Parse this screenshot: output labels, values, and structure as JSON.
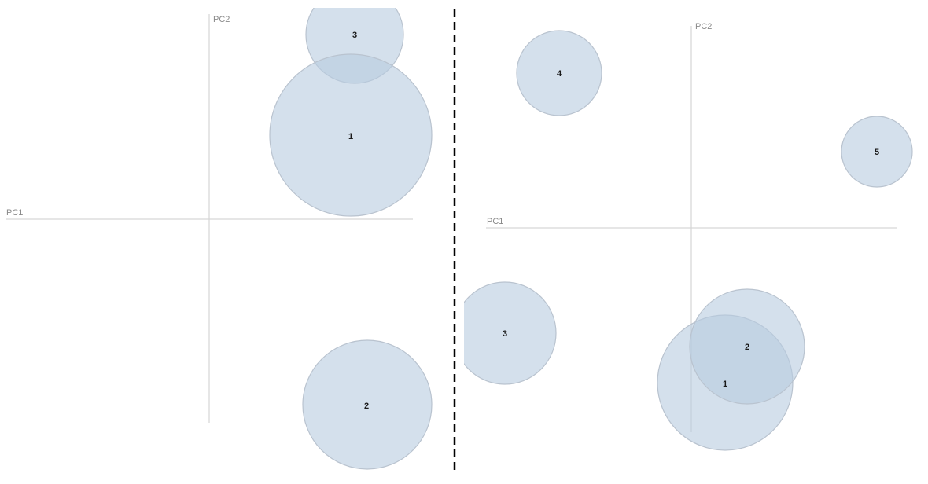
{
  "style": {
    "bubble_fill": "#b7cbe0",
    "bubble_opacity": 0.6,
    "divider_color": "#000000"
  },
  "panels": [
    {
      "x_axis_label": "PC1",
      "y_axis_label": "PC2",
      "bubbles": [
        {
          "label": "3"
        },
        {
          "label": "1"
        },
        {
          "label": "2"
        }
      ]
    },
    {
      "x_axis_label": "PC1",
      "y_axis_label": "PC2",
      "bubbles": [
        {
          "label": "4"
        },
        {
          "label": "5"
        },
        {
          "label": "3"
        },
        {
          "label": "1"
        },
        {
          "label": "2"
        }
      ]
    }
  ]
}
